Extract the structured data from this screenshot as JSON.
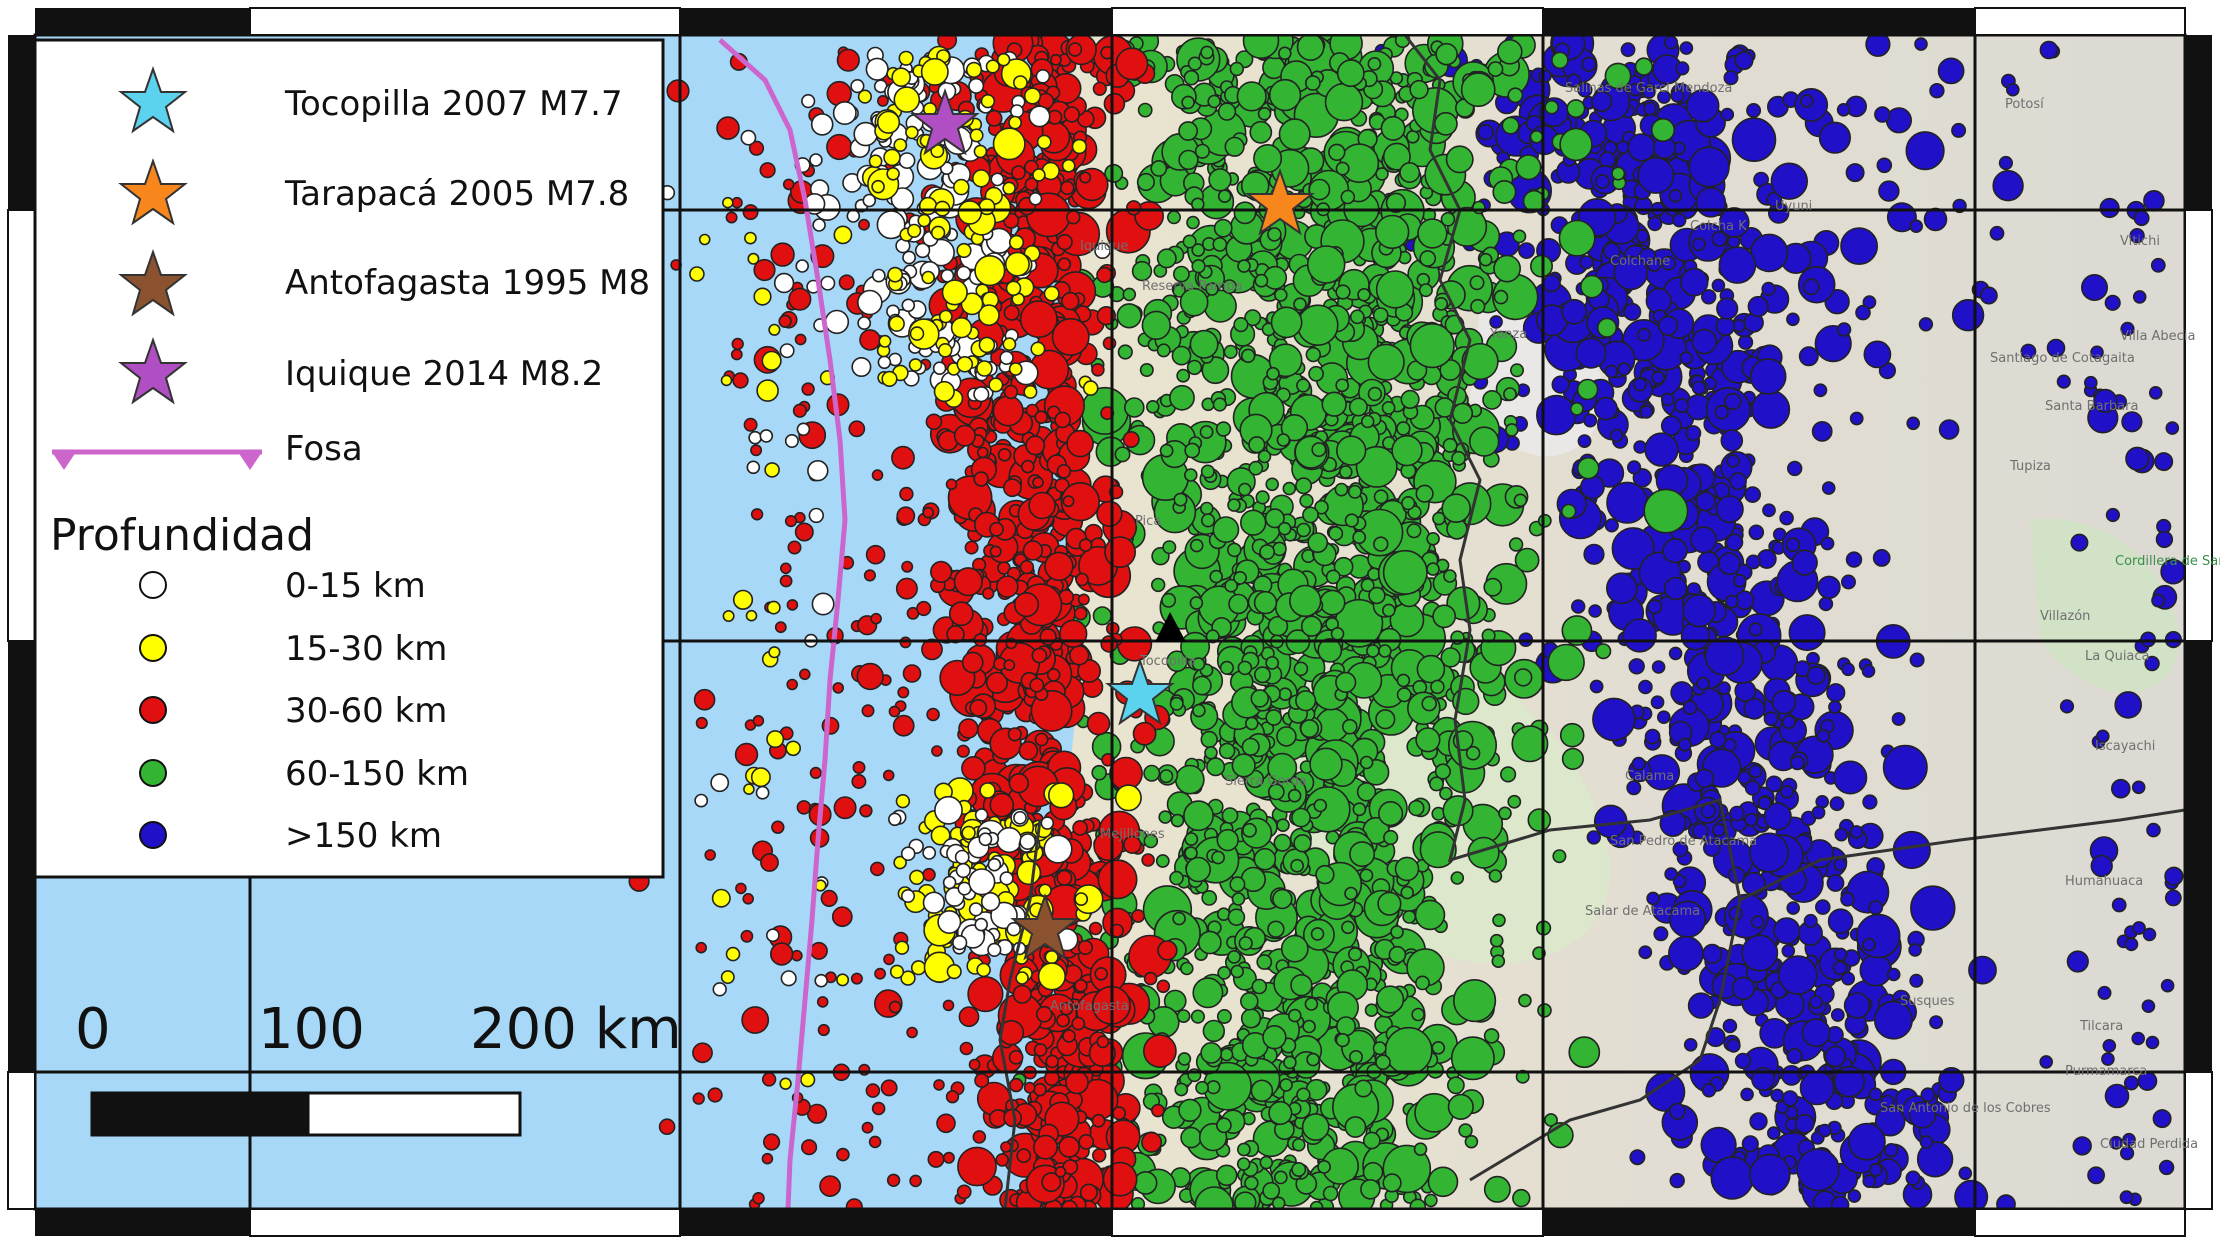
{
  "legend": {
    "stars": [
      {
        "label": "Tocopilla 2007 M7.7",
        "color": "#5bd2ee"
      },
      {
        "label": "Tarapacá 2005 M7.8",
        "color": "#f7861c"
      },
      {
        "label": "Antofagasta 1995 M8",
        "color": "#8b5230"
      },
      {
        "label": "Iquique 2014 M8.2",
        "color": "#b04fc4"
      }
    ],
    "trench_label": "Fosa",
    "trench_color": "#cc66cc",
    "depth_title": "Profundidad",
    "depth_classes": [
      {
        "label": "0-15 km",
        "color": "#ffffff"
      },
      {
        "label": "15-30 km",
        "color": "#ffff00"
      },
      {
        "label": "30-60 km",
        "color": "#e01010"
      },
      {
        "label": ">150 km",
        "color": "#2010c8"
      }
    ],
    "depth_class_green": {
      "label": "60-150 km",
      "color": "#33b533"
    }
  },
  "scale_bar": {
    "ticks": [
      "0",
      "100",
      "200 km"
    ]
  },
  "place_labels": [
    "Salinas de Garci Mendoza",
    "Iquique",
    "Reserva Pampa",
    "Colchane",
    "Yonza",
    "Colcha K",
    "Potosí",
    "Cordillera de Sama Reserve",
    "Sierra Gorda",
    "Antofagasta",
    "Calama",
    "Ciudad Perdida",
    "Humahuaca",
    "San Antonio de los Cobres",
    "Salar de Atacama",
    "Villazón",
    "La Quiaca",
    "Santiago de Cotagaita",
    "Tupiza",
    "Santa Barbara",
    "Vitichi",
    "Villa Abecia",
    "Iscayachi",
    "Tilcara",
    "Purmamarca",
    "Susques",
    "San Pedro de Atacama",
    "Tocopilla",
    "Mejillones",
    "Uyuni",
    "Pica"
  ],
  "colors": {
    "ocean": "#a8d8f7",
    "land": "#ece6cf",
    "land_east": "#e6e4dd",
    "star_outline": "#333333",
    "grid": "#111111",
    "volcano": "#000000"
  }
}
